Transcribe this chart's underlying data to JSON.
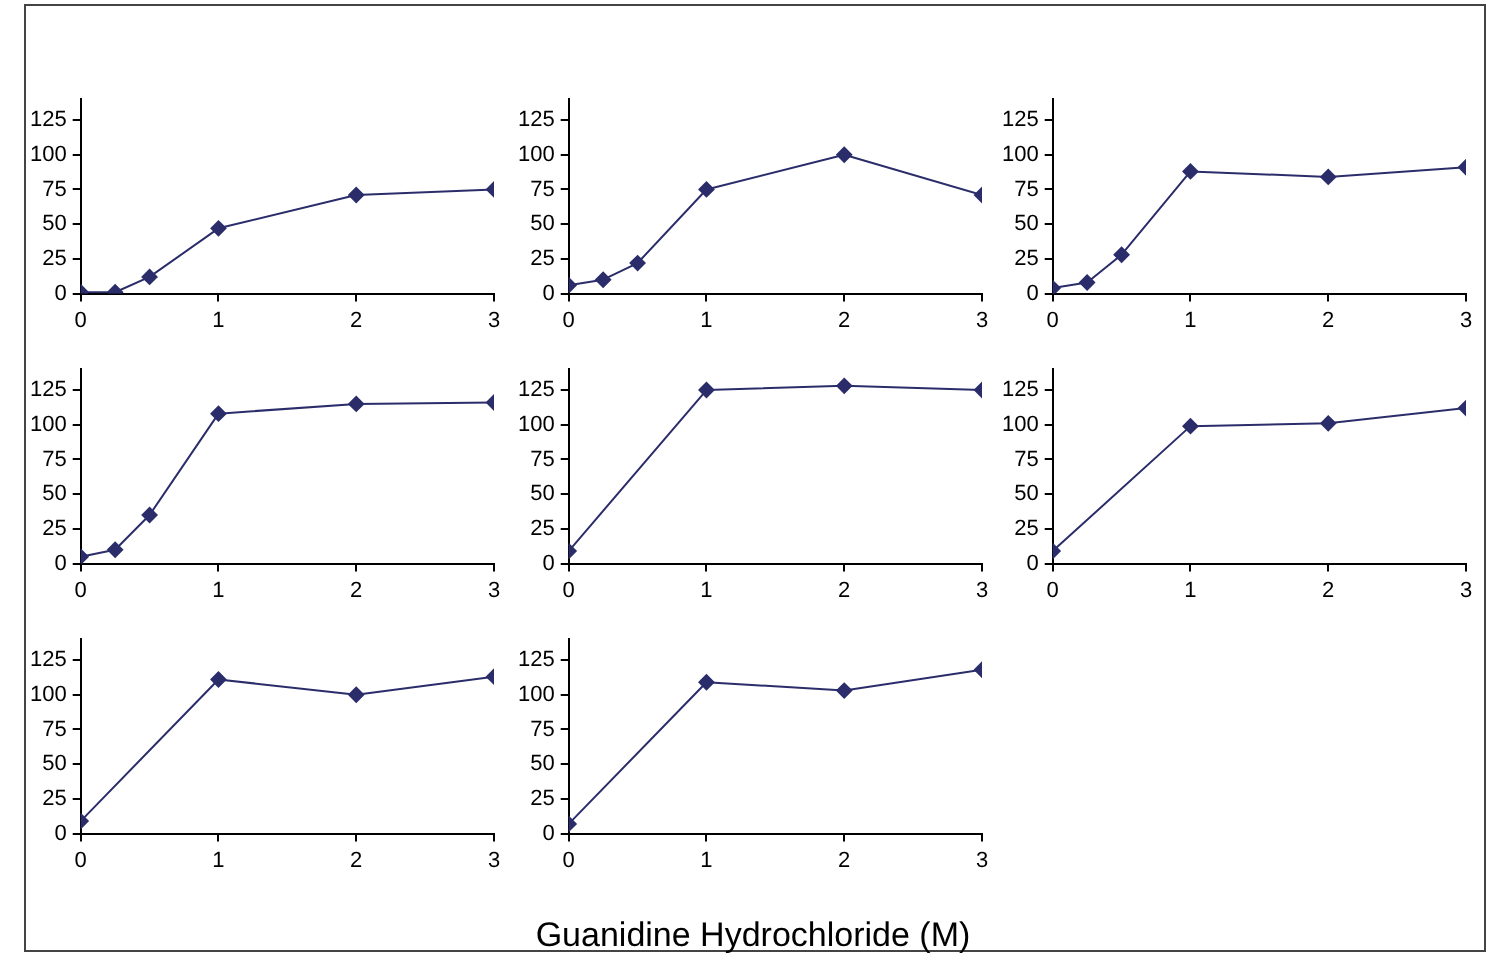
{
  "chart_data": [
    {
      "type": "line",
      "x": [
        0,
        0.25,
        0.5,
        1,
        2,
        3
      ],
      "series": [
        {
          "color": "#2b2d6b",
          "values": [
            1,
            1,
            12,
            47,
            71,
            75
          ]
        }
      ],
      "xlim": [
        0,
        3
      ],
      "xticks": [
        0,
        1,
        2,
        3
      ],
      "ylim": [
        0,
        140
      ],
      "yticks": [
        0,
        25,
        50,
        75,
        100,
        125
      ],
      "marker": "diamond",
      "grid": false,
      "legend": false
    },
    {
      "type": "line",
      "x": [
        0,
        0.25,
        0.5,
        1,
        2,
        3
      ],
      "series": [
        {
          "color": "#2b2d6b",
          "values": [
            6,
            10,
            22,
            75,
            100,
            71
          ]
        }
      ],
      "xlim": [
        0,
        3
      ],
      "xticks": [
        0,
        1,
        2,
        3
      ],
      "ylim": [
        0,
        140
      ],
      "yticks": [
        0,
        25,
        50,
        75,
        100,
        125
      ],
      "marker": "diamond",
      "grid": false,
      "legend": false
    },
    {
      "type": "line",
      "x": [
        0,
        0.25,
        0.5,
        1,
        2,
        3
      ],
      "series": [
        {
          "color": "#2b2d6b",
          "values": [
            4,
            8,
            28,
            88,
            84,
            91
          ]
        }
      ],
      "xlim": [
        0,
        3
      ],
      "xticks": [
        0,
        1,
        2,
        3
      ],
      "ylim": [
        0,
        140
      ],
      "yticks": [
        0,
        25,
        50,
        75,
        100,
        125
      ],
      "marker": "diamond",
      "grid": false,
      "legend": false
    },
    {
      "type": "line",
      "x": [
        0,
        0.25,
        0.5,
        1,
        2,
        3
      ],
      "series": [
        {
          "color": "#2b2d6b",
          "values": [
            5,
            10,
            35,
            108,
            115,
            116
          ]
        }
      ],
      "xlim": [
        0,
        3
      ],
      "xticks": [
        0,
        1,
        2,
        3
      ],
      "ylim": [
        0,
        140
      ],
      "yticks": [
        0,
        25,
        50,
        75,
        100,
        125
      ],
      "marker": "diamond",
      "grid": false,
      "legend": false
    },
    {
      "type": "line",
      "x": [
        0,
        1,
        2,
        3
      ],
      "series": [
        {
          "color": "#2b2d6b",
          "values": [
            9,
            125,
            128,
            125
          ]
        }
      ],
      "xlim": [
        0,
        3
      ],
      "xticks": [
        0,
        1,
        2,
        3
      ],
      "ylim": [
        0,
        140
      ],
      "yticks": [
        0,
        25,
        50,
        75,
        100,
        125
      ],
      "marker": "diamond",
      "grid": false,
      "legend": false
    },
    {
      "type": "line",
      "x": [
        0,
        1,
        2,
        3
      ],
      "series": [
        {
          "color": "#2b2d6b",
          "values": [
            9,
            99,
            101,
            112
          ]
        }
      ],
      "xlim": [
        0,
        3
      ],
      "xticks": [
        0,
        1,
        2,
        3
      ],
      "ylim": [
        0,
        140
      ],
      "yticks": [
        0,
        25,
        50,
        75,
        100,
        125
      ],
      "marker": "diamond",
      "grid": false,
      "legend": false
    },
    {
      "type": "line",
      "x": [
        0,
        1,
        2,
        3
      ],
      "series": [
        {
          "color": "#2b2d6b",
          "values": [
            9,
            111,
            100,
            113
          ]
        }
      ],
      "xlim": [
        0,
        3
      ],
      "xticks": [
        0,
        1,
        2,
        3
      ],
      "ylim": [
        0,
        140
      ],
      "yticks": [
        0,
        25,
        50,
        75,
        100,
        125
      ],
      "marker": "diamond",
      "grid": false,
      "legend": false
    },
    {
      "type": "line",
      "x": [
        0,
        1,
        2,
        3
      ],
      "series": [
        {
          "color": "#2b2d6b",
          "values": [
            7,
            109,
            103,
            118
          ]
        }
      ],
      "xlim": [
        0,
        3
      ],
      "xticks": [
        0,
        1,
        2,
        3
      ],
      "ylim": [
        0,
        140
      ],
      "yticks": [
        0,
        25,
        50,
        75,
        100,
        125
      ],
      "marker": "diamond",
      "grid": false,
      "legend": false
    },
    {
      "type": "other",
      "annotations": [
        "Guanidine Hydrochloride (M)"
      ]
    }
  ]
}
